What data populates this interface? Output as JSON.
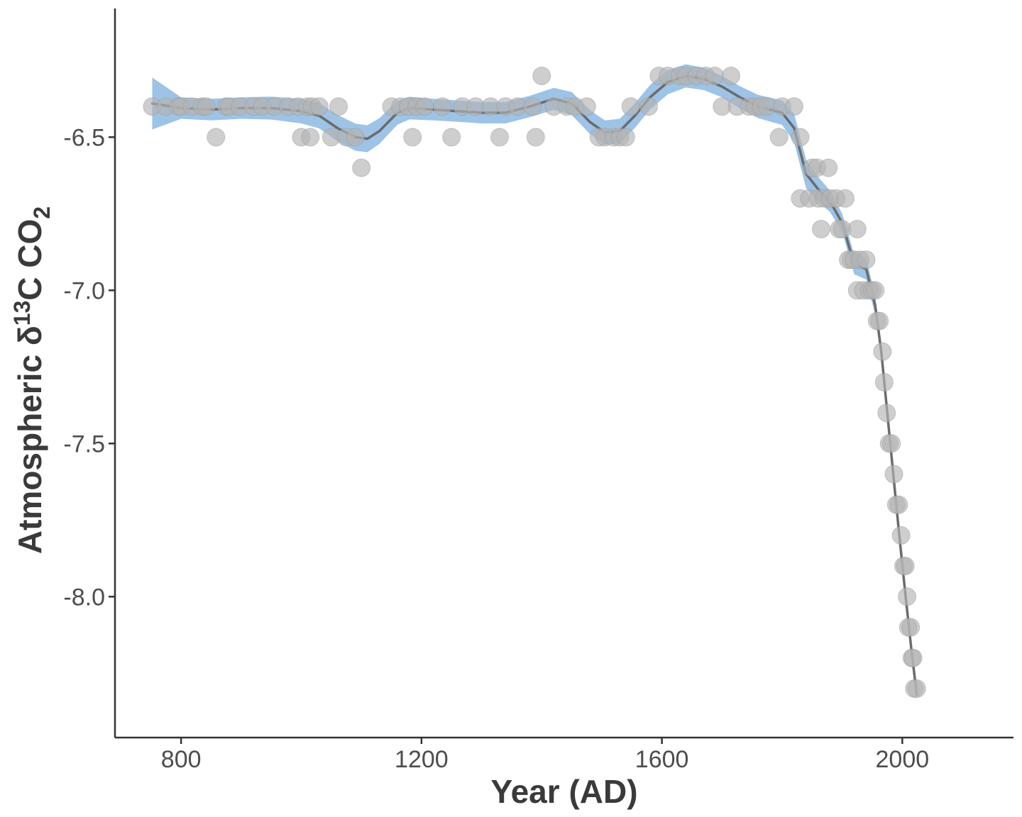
{
  "chart_data": {
    "type": "scatter",
    "title": "",
    "xlabel": "Year (AD)",
    "ylabel": {
      "prefix": "Atmospheric δ",
      "sup": "13",
      "middle": "C CO",
      "sub": "2"
    },
    "xlim": [
      690,
      2185
    ],
    "ylim": [
      -8.46,
      -6.08
    ],
    "x_ticks": [
      800,
      1200,
      1600,
      2000
    ],
    "x_tick_labels": [
      "800",
      "1200",
      "1600",
      "2000"
    ],
    "y_ticks": [
      -6.5,
      -7.0,
      -7.5,
      -8.0
    ],
    "y_tick_labels": [
      "-6.5",
      "-7.0",
      "-7.5",
      "-8.0"
    ],
    "grid": false,
    "legend": "none",
    "colors": {
      "points": "#b3b3b3",
      "point_stroke": "#9a9a9a",
      "ribbon": "#5b9bd5",
      "line": "#6b6b6b",
      "axis": "#333333"
    },
    "points": [
      [
        752,
        -6.4
      ],
      [
        775,
        -6.4
      ],
      [
        795,
        -6.4
      ],
      [
        800,
        -6.4
      ],
      [
        818,
        -6.4
      ],
      [
        835,
        -6.4
      ],
      [
        842,
        -6.4
      ],
      [
        858,
        -6.5
      ],
      [
        875,
        -6.4
      ],
      [
        880,
        -6.4
      ],
      [
        898,
        -6.4
      ],
      [
        920,
        -6.4
      ],
      [
        935,
        -6.4
      ],
      [
        955,
        -6.4
      ],
      [
        978,
        -6.4
      ],
      [
        995,
        -6.4
      ],
      [
        1000,
        -6.5
      ],
      [
        1010,
        -6.4
      ],
      [
        1015,
        -6.5
      ],
      [
        1018,
        -6.4
      ],
      [
        1030,
        -6.4
      ],
      [
        1050,
        -6.5
      ],
      [
        1062,
        -6.4
      ],
      [
        1075,
        -6.5
      ],
      [
        1090,
        -6.5
      ],
      [
        1100,
        -6.6
      ],
      [
        1150,
        -6.4
      ],
      [
        1165,
        -6.4
      ],
      [
        1178,
        -6.4
      ],
      [
        1185,
        -6.5
      ],
      [
        1192,
        -6.4
      ],
      [
        1205,
        -6.4
      ],
      [
        1235,
        -6.4
      ],
      [
        1250,
        -6.5
      ],
      [
        1268,
        -6.4
      ],
      [
        1290,
        -6.4
      ],
      [
        1315,
        -6.4
      ],
      [
        1330,
        -6.5
      ],
      [
        1340,
        -6.4
      ],
      [
        1360,
        -6.4
      ],
      [
        1385,
        -6.4
      ],
      [
        1390,
        -6.5
      ],
      [
        1400,
        -6.3
      ],
      [
        1420,
        -6.4
      ],
      [
        1442,
        -6.4
      ],
      [
        1455,
        -6.4
      ],
      [
        1475,
        -6.4
      ],
      [
        1495,
        -6.5
      ],
      [
        1505,
        -6.5
      ],
      [
        1520,
        -6.5
      ],
      [
        1530,
        -6.5
      ],
      [
        1540,
        -6.5
      ],
      [
        1548,
        -6.4
      ],
      [
        1578,
        -6.4
      ],
      [
        1595,
        -6.3
      ],
      [
        1610,
        -6.3
      ],
      [
        1630,
        -6.3
      ],
      [
        1640,
        -6.3
      ],
      [
        1658,
        -6.3
      ],
      [
        1673,
        -6.3
      ],
      [
        1688,
        -6.3
      ],
      [
        1700,
        -6.4
      ],
      [
        1715,
        -6.3
      ],
      [
        1725,
        -6.4
      ],
      [
        1745,
        -6.4
      ],
      [
        1755,
        -6.4
      ],
      [
        1765,
        -6.4
      ],
      [
        1775,
        -6.4
      ],
      [
        1795,
        -6.5
      ],
      [
        1800,
        -6.4
      ],
      [
        1820,
        -6.4
      ],
      [
        1830,
        -6.5
      ],
      [
        1830,
        -6.7
      ],
      [
        1845,
        -6.7
      ],
      [
        1850,
        -6.6
      ],
      [
        1858,
        -6.6
      ],
      [
        1860,
        -6.7
      ],
      [
        1865,
        -6.8
      ],
      [
        1870,
        -6.7
      ],
      [
        1877,
        -6.6
      ],
      [
        1880,
        -6.7
      ],
      [
        1890,
        -6.7
      ],
      [
        1895,
        -6.8
      ],
      [
        1900,
        -6.8
      ],
      [
        1905,
        -6.7
      ],
      [
        1910,
        -6.9
      ],
      [
        1915,
        -6.9
      ],
      [
        1920,
        -6.9
      ],
      [
        1925,
        -6.8
      ],
      [
        1925,
        -7.0
      ],
      [
        1930,
        -6.9
      ],
      [
        1935,
        -7.0
      ],
      [
        1940,
        -6.9
      ],
      [
        1945,
        -7.0
      ],
      [
        1950,
        -7.0
      ],
      [
        1955,
        -7.0
      ],
      [
        1958,
        -7.1
      ],
      [
        1962,
        -7.1
      ],
      [
        1967,
        -7.2
      ],
      [
        1970,
        -7.3
      ],
      [
        1974,
        -7.4
      ],
      [
        1978,
        -7.5
      ],
      [
        1982,
        -7.5
      ],
      [
        1986,
        -7.6
      ],
      [
        1990,
        -7.7
      ],
      [
        1994,
        -7.7
      ],
      [
        1998,
        -7.8
      ],
      [
        2002,
        -7.9
      ],
      [
        2005,
        -7.9
      ],
      [
        2008,
        -8.0
      ],
      [
        2010,
        -8.1
      ],
      [
        2014,
        -8.1
      ],
      [
        2016,
        -8.2
      ],
      [
        2018,
        -8.2
      ],
      [
        2020,
        -8.3
      ],
      [
        2024,
        -8.3
      ]
    ],
    "smooth_line": [
      [
        752,
        -6.39
      ],
      [
        800,
        -6.405
      ],
      [
        850,
        -6.41
      ],
      [
        900,
        -6.405
      ],
      [
        950,
        -6.405
      ],
      [
        1000,
        -6.415
      ],
      [
        1030,
        -6.43
      ],
      [
        1060,
        -6.47
      ],
      [
        1090,
        -6.5
      ],
      [
        1110,
        -6.505
      ],
      [
        1130,
        -6.48
      ],
      [
        1160,
        -6.42
      ],
      [
        1180,
        -6.405
      ],
      [
        1220,
        -6.41
      ],
      [
        1260,
        -6.415
      ],
      [
        1300,
        -6.42
      ],
      [
        1340,
        -6.42
      ],
      [
        1380,
        -6.4
      ],
      [
        1420,
        -6.375
      ],
      [
        1450,
        -6.39
      ],
      [
        1480,
        -6.45
      ],
      [
        1505,
        -6.485
      ],
      [
        1530,
        -6.48
      ],
      [
        1555,
        -6.43
      ],
      [
        1580,
        -6.37
      ],
      [
        1610,
        -6.32
      ],
      [
        1640,
        -6.3
      ],
      [
        1670,
        -6.31
      ],
      [
        1700,
        -6.335
      ],
      [
        1730,
        -6.37
      ],
      [
        1760,
        -6.4
      ],
      [
        1800,
        -6.42
      ],
      [
        1820,
        -6.47
      ],
      [
        1840,
        -6.62
      ],
      [
        1860,
        -6.67
      ],
      [
        1880,
        -6.71
      ],
      [
        1900,
        -6.78
      ],
      [
        1920,
        -6.915
      ],
      [
        1940,
        -6.93
      ],
      [
        1955,
        -7.05
      ],
      [
        1965,
        -7.2
      ],
      [
        1975,
        -7.4
      ],
      [
        1985,
        -7.6
      ],
      [
        1995,
        -7.8
      ],
      [
        2005,
        -7.99
      ],
      [
        2015,
        -8.17
      ],
      [
        2024,
        -8.32
      ]
    ],
    "ribbon_halfwidth": [
      [
        752,
        0.085
      ],
      [
        800,
        0.035
      ],
      [
        900,
        0.035
      ],
      [
        1000,
        0.04
      ],
      [
        1100,
        0.045
      ],
      [
        1200,
        0.035
      ],
      [
        1300,
        0.035
      ],
      [
        1400,
        0.035
      ],
      [
        1500,
        0.04
      ],
      [
        1600,
        0.04
      ],
      [
        1700,
        0.035
      ],
      [
        1800,
        0.04
      ],
      [
        1830,
        0.05
      ],
      [
        1860,
        0.04
      ],
      [
        1900,
        0.03
      ],
      [
        1940,
        0.035
      ],
      [
        1960,
        0.03
      ],
      [
        2024,
        0.015
      ]
    ]
  }
}
